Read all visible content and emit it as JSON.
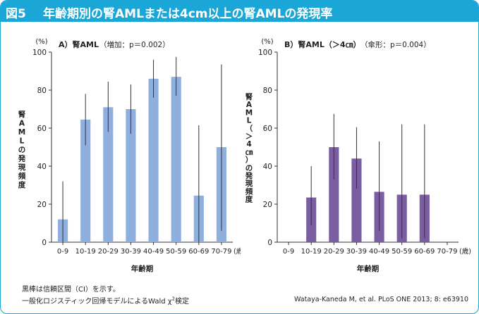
{
  "header": {
    "figure_number": "図5",
    "title": "年齢期別の腎AMLまたは4cm以上の腎AMLの発現率",
    "bg_color": "#1aa7d8"
  },
  "chart_data": [
    {
      "type": "bar",
      "panel_title": "A）腎AML",
      "trend_note": "（増加：p＝0.002）",
      "unit_label": "(%)",
      "ylabel_chars": [
        "腎",
        "A",
        "M",
        "L",
        "の",
        "発",
        "現",
        "頻",
        "度"
      ],
      "xlabel": "年齢期",
      "x_unit": "(歳)",
      "categories": [
        "0-9",
        "10-19",
        "20-29",
        "30-39",
        "40-49",
        "50-59",
        "60-69",
        "70-79"
      ],
      "values": [
        12,
        64.5,
        71,
        70,
        86,
        87,
        24.5,
        50
      ],
      "ci_low": [
        0,
        51,
        58,
        57,
        76,
        77,
        0,
        6
      ],
      "ci_high": [
        32,
        78,
        84.5,
        83,
        96,
        97.5,
        61.5,
        93.5
      ],
      "ylim": [
        0,
        100
      ],
      "yticks": [
        0,
        20,
        40,
        60,
        80,
        100
      ],
      "bar_color": "#8fb0de"
    },
    {
      "type": "bar",
      "panel_title": "B）腎AML（＞4㎝）",
      "trend_note": "（傘形：p＝0.004）",
      "unit_label": "(%)",
      "ylabel_chars": [
        "腎",
        "A",
        "M",
        "L",
        "（",
        "＞",
        "4",
        "㎝",
        "）",
        "の",
        "発",
        "現",
        "頻",
        "度"
      ],
      "xlabel": "年齢期",
      "x_unit": "(歳)",
      "categories": [
        "0-9",
        "10-19",
        "20-29",
        "30-39",
        "40-49",
        "50-59",
        "60-69",
        "70-79"
      ],
      "values": [
        null,
        23.5,
        50,
        44,
        26.5,
        25,
        25,
        null
      ],
      "ci_low": [
        null,
        9,
        33,
        28,
        6,
        2,
        2,
        null
      ],
      "ci_high": [
        null,
        40,
        67.5,
        60.5,
        53,
        62,
        62,
        null
      ],
      "ylim": [
        0,
        100
      ],
      "yticks": [
        0,
        20,
        40,
        60,
        80,
        100
      ],
      "bar_color": "#7b5ea1"
    }
  ],
  "footer": {
    "note1": "黒棒は信頼区間（CI）を示す。",
    "note2": "一般化ロジスティック回帰モデルによるWald χ",
    "note2_sup": "2",
    "note2_end": "検定",
    "citation": "Wataya-Kaneda M, et al. PLoS ONE 2013; 8: e63910"
  }
}
